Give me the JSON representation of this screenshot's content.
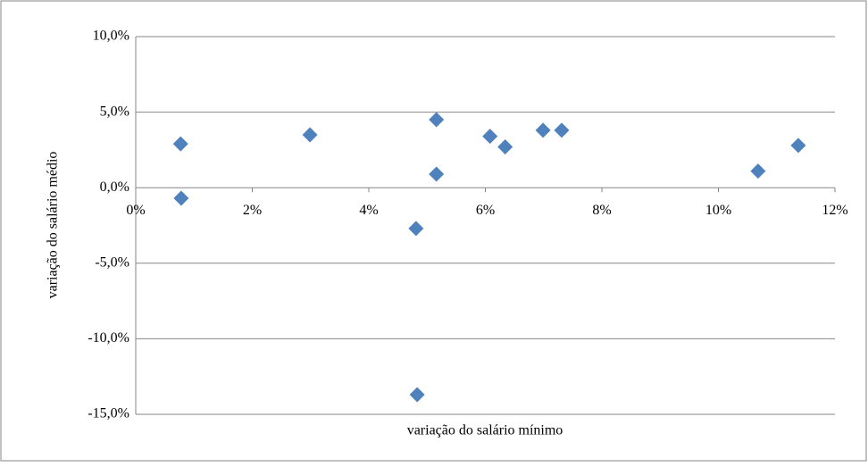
{
  "chart_data": {
    "type": "scatter",
    "x_label": "variação do salário mínimo",
    "y_label": "variação do salário médio",
    "series": [
      {
        "color": "#4f81bd",
        "x": [
          0.77,
          0.78,
          2.99,
          4.81,
          4.83,
          5.16,
          5.16,
          6.08,
          6.34,
          6.99,
          7.31,
          10.68,
          11.37
        ],
        "values": [
          2.9,
          -0.7,
          3.5,
          -2.7,
          -13.7,
          4.5,
          0.9,
          3.4,
          2.7,
          3.8,
          3.8,
          1.1,
          2.8
        ]
      }
    ],
    "xlim": [
      0,
      12
    ],
    "xticks": [
      {
        "value": 0,
        "label": "0%"
      },
      {
        "value": 2,
        "label": "2%"
      },
      {
        "value": 4,
        "label": "4%"
      },
      {
        "value": 6,
        "label": "6%"
      },
      {
        "value": 8,
        "label": "8%"
      },
      {
        "value": 10,
        "label": "10%"
      },
      {
        "value": 12,
        "label": "12%"
      }
    ],
    "ylim": [
      -15,
      10
    ],
    "yticks": [
      {
        "value": -15,
        "label": "-15,0%"
      },
      {
        "value": -10,
        "label": "-10,0%"
      },
      {
        "value": -5,
        "label": "-5,0%"
      },
      {
        "value": 0,
        "label": "0,0%"
      },
      {
        "value": 5,
        "label": "5,0%"
      },
      {
        "value": 10,
        "label": "10,0%"
      }
    ],
    "grid": true
  }
}
